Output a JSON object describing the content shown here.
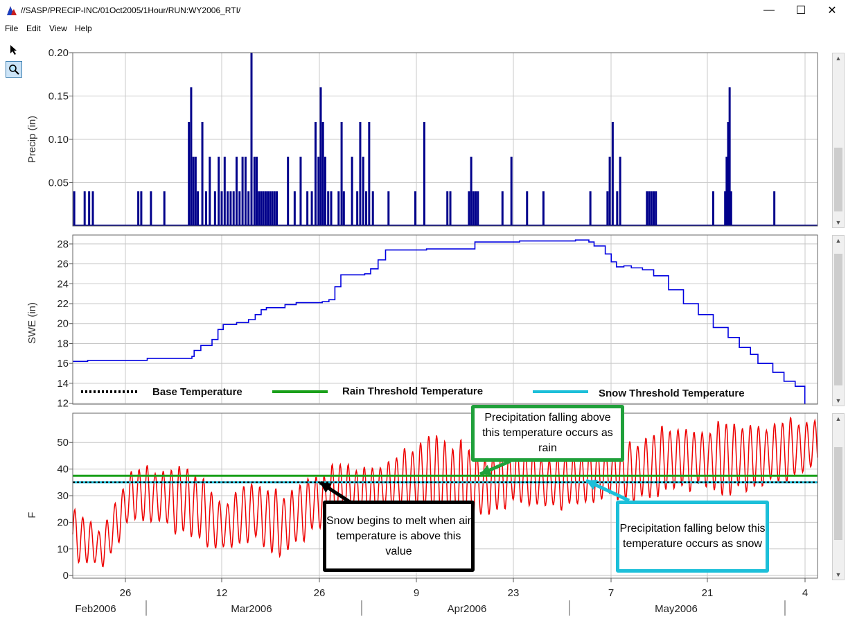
{
  "window": {
    "title": "//SASP/PRECIP-INC/01Oct2005/1Hour/RUN:WY2006_RTI/",
    "minimize_label": "—",
    "maximize_label": "☐",
    "close_label": "✕"
  },
  "menu": {
    "items": [
      "File",
      "Edit",
      "View",
      "Help"
    ]
  },
  "toolbar": {
    "tools": [
      {
        "name": "pointer-icon"
      },
      {
        "name": "zoom-icon"
      }
    ]
  },
  "colors": {
    "precip": "#00008b",
    "swe": "#0000e0",
    "temp": "#ee0000",
    "base": "#000000",
    "rain": "#1aa01a",
    "snow": "#1cbfd9",
    "annot_rain_border": "#1fa03a",
    "annot_snow_border": "#1cbfd9",
    "annot_melt_border": "#000000"
  },
  "time_axis": {
    "day_ticks": [
      "26",
      "12",
      "26",
      "9",
      "23",
      "7",
      "21",
      "4"
    ],
    "months": [
      "Feb2006",
      "Mar2006",
      "Apr2006",
      "May2006"
    ]
  },
  "chart_data": [
    {
      "type": "bar",
      "ylabel": "Precip (in)",
      "yticks": [
        "0.20",
        "0.15",
        "0.10",
        "0.05"
      ],
      "ylim": [
        0,
        0.2
      ],
      "xlim": [
        0,
        100
      ],
      "grid": true,
      "series": [
        {
          "x": [
            0.2,
            1.6,
            2.2,
            2.7,
            8.8,
            9.2,
            10.5,
            12.3,
            15.6,
            15.9,
            16.2,
            16.5,
            16.8,
            17.4,
            17.9,
            18.4,
            19.1,
            19.6,
            20.0,
            20.4,
            20.8,
            21.2,
            21.6,
            22.0,
            22.4,
            22.8,
            23.2,
            23.6,
            24.0,
            24.4,
            24.7,
            25.0,
            25.3,
            25.6,
            25.9,
            26.2,
            26.5,
            26.8,
            27.1,
            27.4,
            28.9,
            29.8,
            30.6,
            31.5,
            32.1,
            32.6,
            33.0,
            33.3,
            33.6,
            33.9,
            34.3,
            34.7,
            35.7,
            36.1,
            36.4,
            37.5,
            38.2,
            38.6,
            39.0,
            39.4,
            39.8,
            40.3,
            42.4,
            46.0,
            47.2,
            50.3,
            50.7,
            53.2,
            53.5,
            53.8,
            54.1,
            54.4,
            57.7,
            58.9,
            61.0,
            63.2,
            69.5,
            71.8,
            72.1,
            72.5,
            73.1,
            73.5,
            77.1,
            77.4,
            77.7,
            78.0,
            78.3,
            86.0,
            87.6,
            87.8,
            88.0,
            88.2,
            88.4,
            94.2
          ],
          "values": [
            0.04,
            0.04,
            0.04,
            0.04,
            0.04,
            0.04,
            0.04,
            0.04,
            0.12,
            0.16,
            0.08,
            0.08,
            0.04,
            0.12,
            0.04,
            0.08,
            0.04,
            0.08,
            0.04,
            0.08,
            0.04,
            0.04,
            0.04,
            0.08,
            0.04,
            0.08,
            0.08,
            0.04,
            0.2,
            0.08,
            0.08,
            0.04,
            0.04,
            0.04,
            0.04,
            0.04,
            0.04,
            0.04,
            0.04,
            0.04,
            0.08,
            0.04,
            0.08,
            0.04,
            0.04,
            0.12,
            0.08,
            0.16,
            0.12,
            0.08,
            0.04,
            0.04,
            0.04,
            0.12,
            0.04,
            0.08,
            0.04,
            0.12,
            0.08,
            0.04,
            0.12,
            0.04,
            0.04,
            0.04,
            0.12,
            0.04,
            0.04,
            0.04,
            0.08,
            0.04,
            0.04,
            0.04,
            0.04,
            0.08,
            0.04,
            0.04,
            0.04,
            0.04,
            0.08,
            0.12,
            0.04,
            0.08,
            0.04,
            0.04,
            0.04,
            0.04,
            0.04,
            0.04,
            0.04,
            0.08,
            0.12,
            0.16,
            0.04,
            0.04
          ]
        }
      ]
    },
    {
      "type": "line",
      "ylabel": "SWE (in)",
      "yticks": [
        "28",
        "26",
        "24",
        "22",
        "20",
        "18",
        "16",
        "14",
        "12"
      ],
      "ylim": [
        11.9,
        28.9
      ],
      "xlim": [
        0,
        100
      ],
      "grid": true,
      "legend_position": "bottom",
      "legend": [
        {
          "label": "Base Temperature",
          "style": "dotted",
          "color_key": "base"
        },
        {
          "label": "Rain Threshold Temperature",
          "style": "solid",
          "color_key": "rain"
        },
        {
          "label": "Snow Threshold Temperature",
          "style": "solid",
          "color_key": "snow"
        }
      ],
      "series": [
        {
          "x": [
            0,
            2,
            9,
            10,
            16,
            16.3,
            17.2,
            18.7,
            19.5,
            20.2,
            22.0,
            23.6,
            24.5,
            25.3,
            26.0,
            28.5,
            30.0,
            33.5,
            34.4,
            35.2,
            36.0,
            39.2,
            40.0,
            41.0,
            42.0,
            47.5,
            54.0,
            60.0,
            67.5,
            68.2,
            69.3,
            70.0,
            71.5,
            72.3,
            73.0,
            74.0,
            75.0,
            76.5,
            78.0,
            80.0,
            82.0,
            84.0,
            86.0,
            88.0,
            89.5,
            91.0,
            92.0,
            94.0,
            95.5,
            97.0,
            98.3
          ],
          "values": [
            16.2,
            16.3,
            16.3,
            16.5,
            16.7,
            17.3,
            17.8,
            18.4,
            19.4,
            19.9,
            20.1,
            20.4,
            20.9,
            21.4,
            21.6,
            21.9,
            22.1,
            22.2,
            22.4,
            23.7,
            24.9,
            25.0,
            25.5,
            26.4,
            27.4,
            27.5,
            28.2,
            28.3,
            28.4,
            28.4,
            28.2,
            27.8,
            27.0,
            26.2,
            25.7,
            25.8,
            25.6,
            25.4,
            24.8,
            23.4,
            22.0,
            20.9,
            19.6,
            18.6,
            17.6,
            16.9,
            16.0,
            15.1,
            14.2,
            13.7,
            11.9
          ]
        }
      ]
    },
    {
      "type": "line",
      "ylabel": "F",
      "yticks": [
        "50",
        "40",
        "30",
        "20",
        "10",
        "0"
      ],
      "ylim": [
        -1,
        61
      ],
      "xlim": [
        0,
        100
      ],
      "grid": true,
      "reference_lines": [
        {
          "value": 37.5,
          "color_key": "rain",
          "style": "solid"
        },
        {
          "value": 35,
          "color_key": "snow",
          "style": "solid"
        },
        {
          "value": 35,
          "color_key": "base",
          "style": "dotted"
        }
      ],
      "series": [
        {
          "envelope_x": [
            0,
            4,
            8,
            12,
            16,
            20,
            24,
            28,
            32,
            36,
            40,
            44,
            48,
            52,
            56,
            60,
            64,
            68,
            72,
            76,
            80,
            84,
            88,
            92,
            96,
            100
          ],
          "envelope_max": [
            26,
            18,
            42,
            41,
            43,
            28,
            37,
            32,
            38,
            44,
            41,
            47,
            55,
            52,
            46,
            50,
            45,
            48,
            50,
            52,
            58,
            55,
            60,
            57,
            60,
            59
          ],
          "envelope_min": [
            5,
            2,
            20,
            18,
            12,
            8,
            12,
            5,
            15,
            18,
            20,
            24,
            20,
            12,
            22,
            26,
            24,
            25,
            28,
            26,
            30,
            32,
            28,
            32,
            34,
            40
          ]
        }
      ]
    }
  ],
  "annotations": {
    "rain": "Precipitation falling above this temperature occurs as rain",
    "melt": "Snow begins to melt when air temperature is above this value",
    "snow": "Precipitation falling below this temperature occurs as snow"
  }
}
